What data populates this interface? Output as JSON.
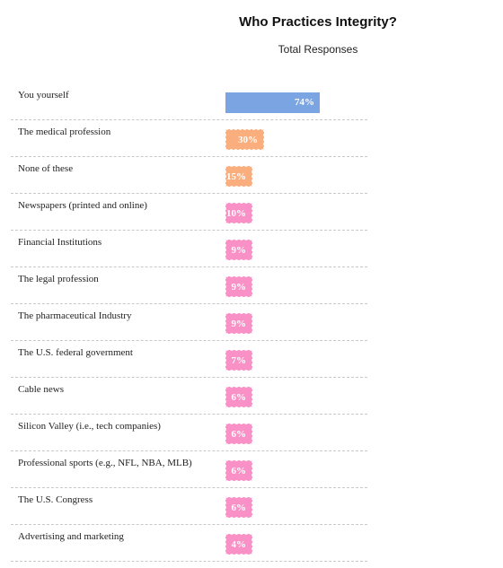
{
  "chart_data": {
    "type": "bar",
    "orientation": "horizontal",
    "title": "Who Practices Integrity?",
    "subtitle": "Total Responses",
    "unit": "%",
    "xlim": [
      0,
      100
    ],
    "grid": false,
    "categories": [
      "You yourself",
      "The medical profession",
      "None of these",
      "Newspapers (printed and online)",
      "Financial Institutions",
      "The legal profession",
      "The pharmaceutical Industry",
      "The U.S. federal government",
      "Cable news",
      "Silicon Valley (i.e., tech companies)",
      "Professional sports (e.g., NFL, NBA, MLB)",
      "The U.S. Congress",
      "Advertising and marketing"
    ],
    "values": [
      74,
      30,
      15,
      10,
      9,
      9,
      9,
      7,
      6,
      6,
      6,
      6,
      4
    ],
    "value_labels": [
      "74%",
      "30%",
      "15%",
      "10%",
      "9%",
      "9%",
      "9%",
      "7%",
      "6%",
      "6%",
      "6%",
      "6%",
      "4%"
    ],
    "colors": [
      "#7ba4e2",
      "#fbae7d",
      "#fbae7d",
      "#f990c6",
      "#f990c6",
      "#f990c6",
      "#f990c6",
      "#f990c6",
      "#f990c6",
      "#f990c6",
      "#f990c6",
      "#f990c6",
      "#f990c6"
    ]
  }
}
